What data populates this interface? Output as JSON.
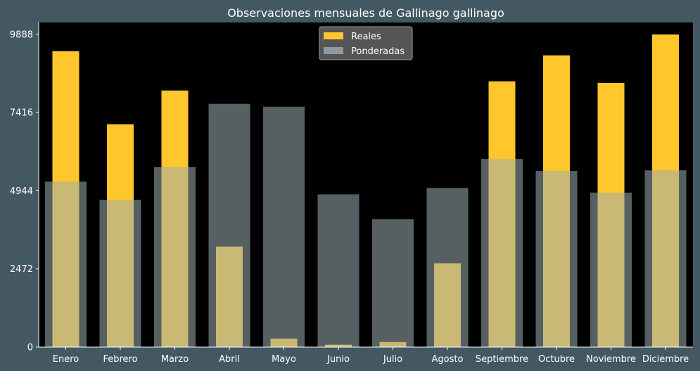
{
  "chart_data": {
    "type": "bar",
    "title": "Observaciones mensuales de Gallinago gallinago",
    "xlabel": "",
    "ylabel": "",
    "categories": [
      "Enero",
      "Febrero",
      "Marzo",
      "Abril",
      "Mayo",
      "Junio",
      "Julio",
      "Agosto",
      "Septiembre",
      "Octubre",
      "Noviembre",
      "Diciembre"
    ],
    "yticks": [
      "0",
      "2472",
      "4944",
      "7416",
      "9888"
    ],
    "ylim": [
      0,
      10260
    ],
    "grid": false,
    "legend_position": "top-center",
    "series": [
      {
        "name": "Reales",
        "color": "#ffc72c",
        "values": [
          9350,
          7040,
          8110,
          3180,
          270,
          75,
          160,
          2650,
          8400,
          9220,
          8350,
          9880
        ]
      },
      {
        "name": "Ponderadas",
        "color": "#9cadb3",
        "values": [
          5230,
          4650,
          5690,
          7690,
          7600,
          4830,
          4040,
          5030,
          5950,
          5570,
          4880,
          5590
        ]
      }
    ],
    "colors": {
      "figure_background": "#435863",
      "plot_background": "#000000",
      "text": "#ffffff",
      "overlap": "#d6d08c"
    }
  }
}
